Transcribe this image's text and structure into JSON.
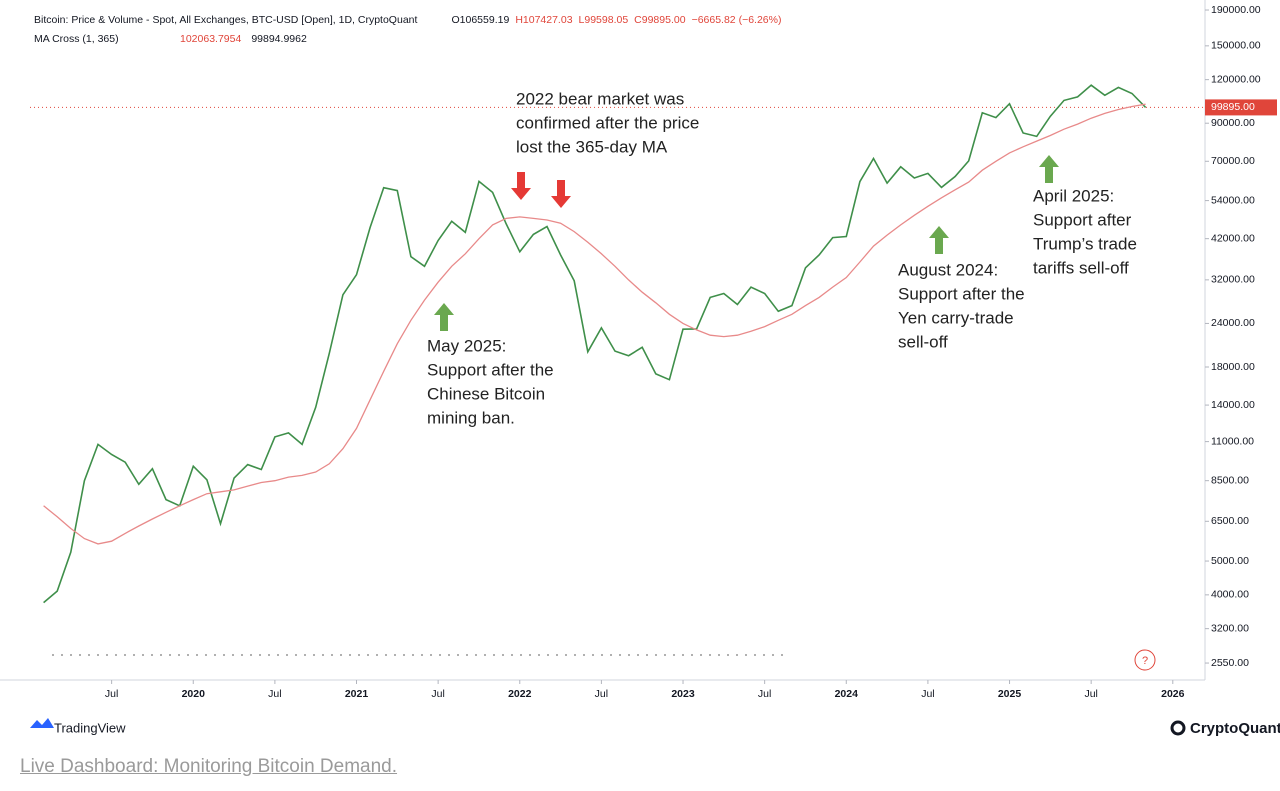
{
  "chart_data": {
    "type": "line",
    "header": {
      "title": "Bitcoin: Price & Volume - Spot, All Exchanges, BTC-USD [Open], 1D, CryptoQuant",
      "ohlc": [
        "O106559.19",
        "H107427.03",
        "L99598.05",
        "C99895.00",
        "−6665.82 (−6.26%)"
      ],
      "ma_label": "MA Cross (1, 365)",
      "ma_values": [
        "102063.7954",
        "99894.9962"
      ]
    },
    "log_scale": true,
    "x": [
      "2019-02",
      "2019-03",
      "2019-04",
      "2019-05",
      "2019-06",
      "2019-07",
      "2019-08",
      "2019-09",
      "2019-10",
      "2019-11",
      "2019-12",
      "2020-01",
      "2020-02",
      "2020-03",
      "2020-04",
      "2020-05",
      "2020-06",
      "2020-07",
      "2020-08",
      "2020-09",
      "2020-10",
      "2020-11",
      "2020-12",
      "2021-01",
      "2021-02",
      "2021-03",
      "2021-04",
      "2021-05",
      "2021-06",
      "2021-07",
      "2021-08",
      "2021-09",
      "2021-10",
      "2021-11",
      "2021-12",
      "2022-01",
      "2022-02",
      "2022-03",
      "2022-04",
      "2022-05",
      "2022-06",
      "2022-07",
      "2022-08",
      "2022-09",
      "2022-10",
      "2022-11",
      "2022-12",
      "2023-01",
      "2023-02",
      "2023-03",
      "2023-04",
      "2023-05",
      "2023-06",
      "2023-07",
      "2023-08",
      "2023-09",
      "2023-10",
      "2023-11",
      "2023-12",
      "2024-01",
      "2024-02",
      "2024-03",
      "2024-04",
      "2024-05",
      "2024-06",
      "2024-07",
      "2024-08",
      "2024-09",
      "2024-10",
      "2024-11",
      "2024-12",
      "2025-01",
      "2025-02",
      "2025-03",
      "2025-04",
      "2025-05",
      "2025-06",
      "2025-07",
      "2025-08",
      "2025-09",
      "2025-10",
      "2025-11"
    ],
    "series": [
      {
        "name": "Price",
        "color": "#3f8f4a",
        "values": [
          3800,
          4100,
          5300,
          8500,
          10800,
          10100,
          9600,
          8300,
          9200,
          7500,
          7200,
          9350,
          8550,
          6400,
          8650,
          9450,
          9150,
          11350,
          11650,
          10800,
          13800,
          19700,
          29000,
          33100,
          45200,
          58800,
          57700,
          37300,
          35000,
          41500,
          47100,
          43800,
          61300,
          57000,
          46300,
          38500,
          43200,
          45500,
          37700,
          31800,
          19900,
          23300,
          20000,
          19400,
          20500,
          17200,
          16550,
          23100,
          23150,
          28500,
          29250,
          27200,
          30500,
          29250,
          26000,
          27000,
          34650,
          37700,
          42300,
          42600,
          61200,
          71300,
          60600,
          67500,
          62700,
          64600,
          58900,
          63300,
          70200,
          96400,
          93400,
          102400,
          84350,
          82500,
          94200,
          104600,
          107100,
          115700,
          108200,
          114000,
          109500,
          99895
        ]
      },
      {
        "name": "MA",
        "color": "#e88a8a",
        "values": [
          7200,
          6700,
          6200,
          5800,
          5600,
          5700,
          6000,
          6300,
          6600,
          6900,
          7200,
          7500,
          7800,
          7900,
          8000,
          8200,
          8400,
          8500,
          8700,
          8800,
          9000,
          9500,
          10500,
          12000,
          14500,
          17500,
          21000,
          24500,
          28000,
          31500,
          35000,
          38000,
          42000,
          46000,
          48000,
          48500,
          48000,
          47500,
          46500,
          44000,
          41000,
          38000,
          35000,
          32000,
          29500,
          27500,
          25500,
          24000,
          23000,
          22200,
          22000,
          22200,
          22800,
          23500,
          24500,
          25500,
          27000,
          28500,
          30500,
          32500,
          36000,
          40000,
          43000,
          46000,
          49000,
          52000,
          55000,
          58000,
          61000,
          66000,
          70000,
          74000,
          77000,
          80000,
          83000,
          86500,
          89500,
          93000,
          96000,
          98500,
          100500,
          102064
        ]
      }
    ],
    "xlim": [
      "2019-01",
      "2026-03"
    ],
    "xticks": [
      {
        "value": "2019-07",
        "label": "Jul"
      },
      {
        "value": "2020-01",
        "label": "2020"
      },
      {
        "value": "2020-07",
        "label": "Jul"
      },
      {
        "value": "2021-01",
        "label": "2021"
      },
      {
        "value": "2021-07",
        "label": "Jul"
      },
      {
        "value": "2022-01",
        "label": "2022"
      },
      {
        "value": "2022-07",
        "label": "Jul"
      },
      {
        "value": "2023-01",
        "label": "2023"
      },
      {
        "value": "2023-07",
        "label": "Jul"
      },
      {
        "value": "2024-01",
        "label": "2024"
      },
      {
        "value": "2024-07",
        "label": "Jul"
      },
      {
        "value": "2025-01",
        "label": "2025"
      },
      {
        "value": "2025-07",
        "label": "Jul"
      },
      {
        "value": "2026-01",
        "label": "2026"
      }
    ],
    "ylim": [
      2280,
      203000
    ],
    "yticks": [
      {
        "value": 190000,
        "label": "190000.00"
      },
      {
        "value": 150000,
        "label": "150000.00"
      },
      {
        "value": 120000,
        "label": "120000.00"
      },
      {
        "value": 90000,
        "label": "90000.00"
      },
      {
        "value": 70000,
        "label": "70000.00"
      },
      {
        "value": 54000,
        "label": "54000.00"
      },
      {
        "value": 42000,
        "label": "42000.00"
      },
      {
        "value": 32000,
        "label": "32000.00"
      },
      {
        "value": 24000,
        "label": "24000.00"
      },
      {
        "value": 18000,
        "label": "18000.00"
      },
      {
        "value": 14000,
        "label": "14000.00"
      },
      {
        "value": 11000,
        "label": "11000.00"
      },
      {
        "value": 8500,
        "label": "8500.00"
      },
      {
        "value": 6500,
        "label": "6500.00"
      },
      {
        "value": 5000,
        "label": "5000.00"
      },
      {
        "value": 4000,
        "label": "4000.00"
      },
      {
        "value": 3200,
        "label": "3200.00"
      },
      {
        "value": 2550,
        "label": "2550.00"
      }
    ],
    "price_tag": {
      "value": 99895,
      "label": "99895.00"
    },
    "annotations": [
      [
        "2022 bear market was",
        "confirmed after the price",
        "lost the 365-day MA"
      ],
      [
        "May 2025:",
        "Support after the",
        "Chinese Bitcoin",
        "mining ban."
      ],
      [
        "August 2024:",
        "Support after the",
        "Yen carry-trade",
        "sell-off"
      ],
      [
        "April 2025:",
        "Support after",
        "Trump’s trade",
        "tariffs sell-off"
      ]
    ],
    "footer": {
      "left_brand": "TradingView",
      "right_brand": "CryptoQuant"
    }
  },
  "link": "Live Dashboard: Monitoring Bitcoin Demand."
}
